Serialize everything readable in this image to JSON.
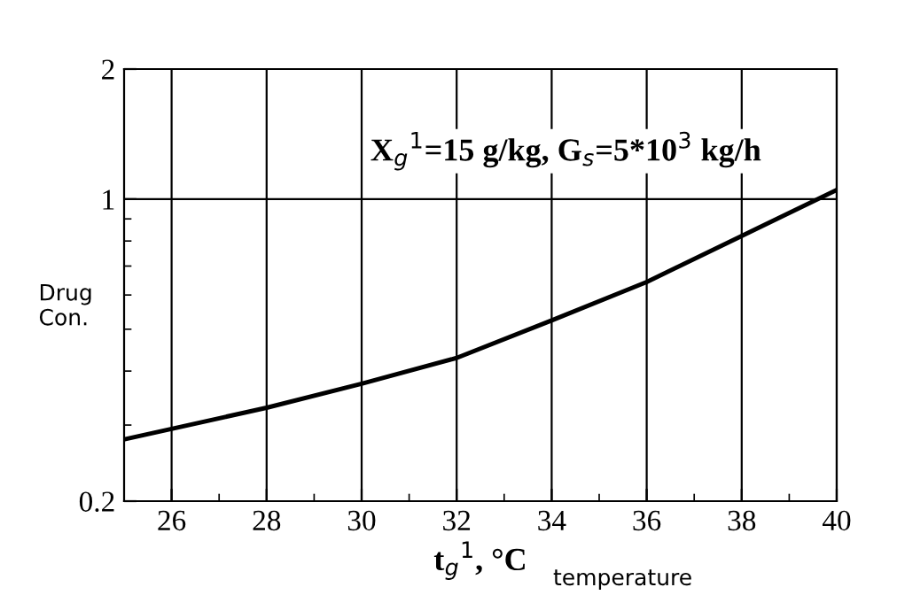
{
  "chart_data": {
    "type": "line",
    "x": [
      25,
      26,
      28,
      30,
      32,
      34,
      36,
      38,
      40
    ],
    "series": [
      {
        "color": "#000000",
        "values": [
          0.278,
          0.294,
          0.329,
          0.374,
          0.429,
          0.524,
          0.643,
          0.822,
          1.05
        ]
      }
    ],
    "xlim": [
      25,
      40
    ],
    "xticks": [
      26,
      28,
      30,
      32,
      34,
      36,
      38,
      40
    ],
    "ylim": [
      0.2,
      2
    ],
    "yticks": [
      0.2,
      1,
      2
    ],
    "log": "y",
    "grid": true,
    "marker": "none",
    "line_style": "solid",
    "xlabel": "t$_{g}$$^{1}$, °C",
    "ylabel": "Drug\nCon.",
    "annotations": [
      {
        "text": "X$_{g}$$^{1}$=15 g/kg, G$_{s}$=5*10$^{3}$ kg/h"
      },
      {
        "text": "temperature"
      }
    ]
  }
}
